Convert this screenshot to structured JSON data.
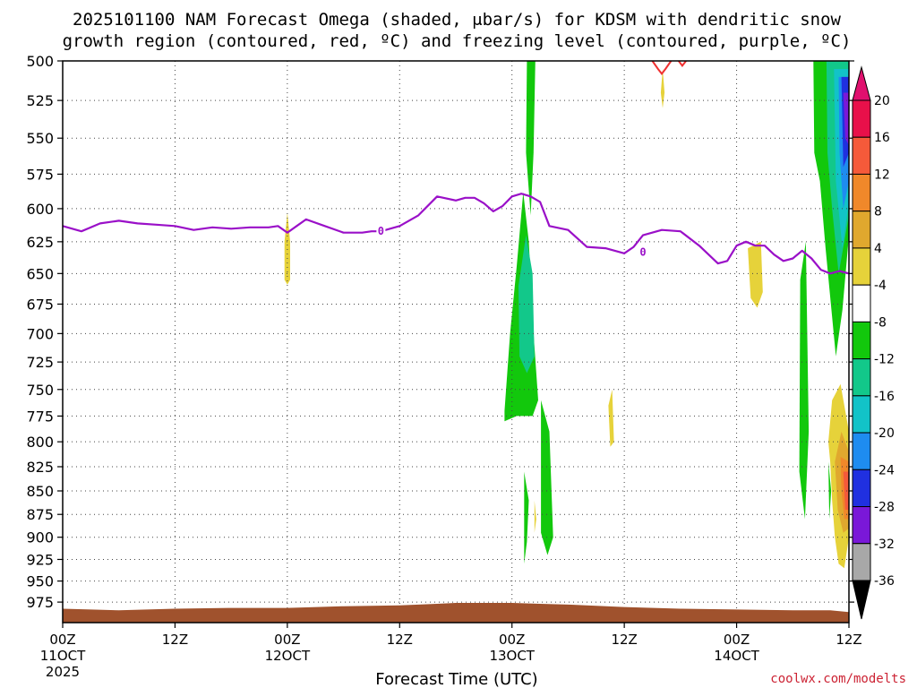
{
  "chart_data": {
    "type": "contour",
    "title_line1": "2025101100 NAM Forecast Omega (shaded, μbar/s) for KDSM with dendritic snow",
    "title_line2": "growth region (contoured, red, ºC) and freezing level (contoured, purple, ºC)",
    "xlabel": "Forecast Time (UTC)",
    "credit": "coolwx.com/modelts",
    "x_hours_range": [
      0,
      84
    ],
    "y_range_hpa": [
      500,
      1000
    ],
    "y_ticks": [
      500,
      525,
      550,
      575,
      600,
      625,
      650,
      675,
      700,
      725,
      750,
      775,
      800,
      825,
      850,
      875,
      900,
      925,
      950,
      975
    ],
    "x_ticks": [
      {
        "h": 0,
        "line1": "00Z",
        "line2": "11OCT",
        "line3": "2025"
      },
      {
        "h": 12,
        "line1": "12Z",
        "line2": "",
        "line3": ""
      },
      {
        "h": 24,
        "line1": "00Z",
        "line2": "12OCT",
        "line3": ""
      },
      {
        "h": 36,
        "line1": "12Z",
        "line2": "",
        "line3": ""
      },
      {
        "h": 48,
        "line1": "00Z",
        "line2": "13OCT",
        "line3": ""
      },
      {
        "h": 60,
        "line1": "12Z",
        "line2": "",
        "line3": ""
      },
      {
        "h": 72,
        "line1": "00Z",
        "line2": "14OCT",
        "line3": ""
      },
      {
        "h": 84,
        "line1": "12Z",
        "line2": "",
        "line3": ""
      }
    ],
    "colorbar": {
      "labels": [
        "20",
        "16",
        "12",
        "8",
        "4",
        "-4",
        "-8",
        "-12",
        "-16",
        "-20",
        "-24",
        "-28",
        "-32",
        "-36"
      ],
      "colors": [
        "#e8104a",
        "#f55a3a",
        "#f0882a",
        "#e0a82e",
        "#e6d23a",
        "#ffffff",
        "#12c80c",
        "#12c88a",
        "#12c3c8",
        "#1e8cf0",
        "#2030e0",
        "#7a18d8",
        "#9a0cc8",
        "#a8a8a8"
      ],
      "top_triangle_color": "#e0106e",
      "bottom_triangle_color": "#000000"
    },
    "freezing_level": {
      "label": "0",
      "color": "#9a10c8",
      "hours": [
        0,
        2,
        4,
        6,
        8,
        10,
        12,
        14,
        16,
        18,
        20,
        22,
        23,
        24,
        25,
        26,
        28,
        30,
        32,
        33,
        34,
        36,
        38,
        40,
        42,
        43,
        44,
        45,
        46,
        47,
        48,
        49,
        50,
        51,
        52,
        54,
        56,
        58,
        60,
        61,
        62,
        64,
        66,
        68,
        70,
        71,
        72,
        73,
        74,
        75,
        76,
        77,
        78,
        79,
        80,
        81,
        82,
        83,
        84
      ],
      "pressure": [
        613,
        617,
        611,
        609,
        611,
        612,
        613,
        616,
        614,
        615,
        614,
        614,
        613,
        618,
        613,
        608,
        613,
        618,
        618,
        617,
        617,
        613,
        605,
        591,
        594,
        592,
        592,
        596,
        602,
        598,
        591,
        589,
        591,
        595,
        613,
        616,
        629,
        630,
        634,
        629,
        620,
        616,
        617,
        628,
        642,
        640,
        628,
        625,
        628,
        628,
        635,
        640,
        638,
        632,
        638,
        647,
        650,
        648,
        650
      ]
    },
    "omega_regions": [
      {
        "color": "#e6d23a",
        "points": [
          [
            24.0,
            603
          ],
          [
            24.3,
            625
          ],
          [
            24.3,
            655
          ],
          [
            24.0,
            659
          ],
          [
            23.7,
            655
          ],
          [
            23.7,
            625
          ]
        ]
      },
      {
        "color": "#12c80c",
        "points": [
          [
            47.2,
            770
          ],
          [
            47.8,
            700
          ],
          [
            48.5,
            645
          ],
          [
            49.2,
            588
          ],
          [
            49.8,
            625
          ],
          [
            50.3,
            700
          ],
          [
            50.8,
            760
          ],
          [
            50.2,
            775
          ],
          [
            48.5,
            775
          ],
          [
            47.2,
            780
          ]
        ]
      },
      {
        "color": "#12c88a",
        "points": [
          [
            48.7,
            660
          ],
          [
            49.5,
            620
          ],
          [
            50.2,
            650
          ],
          [
            50.4,
            720
          ],
          [
            49.6,
            735
          ],
          [
            48.8,
            720
          ]
        ]
      },
      {
        "color": "#12c80c",
        "points": [
          [
            49.6,
            500
          ],
          [
            50.5,
            500
          ],
          [
            50.3,
            560
          ],
          [
            50.0,
            605
          ],
          [
            49.5,
            560
          ]
        ]
      },
      {
        "color": "#12c80c",
        "points": [
          [
            51.1,
            760
          ],
          [
            52.0,
            790
          ],
          [
            52.4,
            900
          ],
          [
            51.8,
            920
          ],
          [
            51.1,
            895
          ]
        ]
      },
      {
        "color": "#12c80c",
        "points": [
          [
            49.3,
            830
          ],
          [
            49.8,
            860
          ],
          [
            49.6,
            905
          ],
          [
            49.3,
            930
          ]
        ]
      },
      {
        "color": "#e6d23a",
        "points": [
          [
            50.4,
            860
          ],
          [
            50.6,
            880
          ],
          [
            50.4,
            895
          ]
        ]
      },
      {
        "color": "#e6d23a",
        "points": [
          [
            63.9,
            520
          ],
          [
            64.1,
            505
          ],
          [
            64.3,
            520
          ],
          [
            64.1,
            530
          ]
        ]
      },
      {
        "color": "#e6d23a",
        "points": [
          [
            58.3,
            765
          ],
          [
            58.7,
            750
          ],
          [
            58.9,
            800
          ],
          [
            58.5,
            805
          ]
        ]
      },
      {
        "color": "#e6d23a",
        "points": [
          [
            73.2,
            630
          ],
          [
            74.6,
            625
          ],
          [
            74.8,
            665
          ],
          [
            74.2,
            678
          ],
          [
            73.5,
            670
          ]
        ]
      },
      {
        "color": "#12c80c",
        "points": [
          [
            78.8,
            655
          ],
          [
            79.4,
            625
          ],
          [
            79.7,
            790
          ],
          [
            79.3,
            880
          ],
          [
            78.7,
            830
          ]
        ]
      },
      {
        "color": "#12c80c",
        "points": [
          [
            80.2,
            500
          ],
          [
            84.0,
            500
          ],
          [
            84.0,
            620
          ],
          [
            83.3,
            680
          ],
          [
            82.6,
            720
          ],
          [
            81.5,
            630
          ],
          [
            80.9,
            580
          ],
          [
            80.3,
            560
          ]
        ]
      },
      {
        "color": "#12c80c",
        "points": [
          [
            81.8,
            820
          ],
          [
            82.1,
            850
          ],
          [
            81.9,
            880
          ]
        ]
      },
      {
        "color": "#12c88a",
        "points": [
          [
            81.6,
            500
          ],
          [
            84.0,
            500
          ],
          [
            84.0,
            605
          ],
          [
            82.9,
            650
          ],
          [
            82.2,
            600
          ],
          [
            81.7,
            560
          ]
        ]
      },
      {
        "color": "#12c3c8",
        "points": [
          [
            82.4,
            505
          ],
          [
            84.0,
            505
          ],
          [
            84.0,
            595
          ],
          [
            83.3,
            630
          ],
          [
            82.6,
            580
          ]
        ]
      },
      {
        "color": "#1e8cf0",
        "points": [
          [
            82.9,
            510
          ],
          [
            84.0,
            510
          ],
          [
            84.0,
            580
          ],
          [
            83.4,
            600
          ],
          [
            83.0,
            560
          ]
        ]
      },
      {
        "color": "#2030e0",
        "points": [
          [
            83.2,
            510
          ],
          [
            84.0,
            510
          ],
          [
            84.0,
            560
          ],
          [
            83.4,
            570
          ]
        ]
      },
      {
        "color": "#7a18d8",
        "points": [
          [
            83.4,
            520
          ],
          [
            84.0,
            520
          ],
          [
            84.0,
            555
          ],
          [
            83.6,
            550
          ]
        ]
      },
      {
        "color": "#e6d23a",
        "points": [
          [
            81.8,
            800
          ],
          [
            82.2,
            760
          ],
          [
            83.1,
            745
          ],
          [
            84.0,
            790
          ],
          [
            84.0,
            900
          ],
          [
            83.5,
            935
          ],
          [
            82.9,
            930
          ],
          [
            82.5,
            900
          ],
          [
            82.2,
            860
          ],
          [
            82.0,
            820
          ]
        ]
      },
      {
        "color": "#e0a82e",
        "points": [
          [
            82.5,
            820
          ],
          [
            83.2,
            790
          ],
          [
            84.0,
            810
          ],
          [
            84.0,
            890
          ],
          [
            83.4,
            895
          ],
          [
            82.8,
            870
          ]
        ]
      },
      {
        "color": "#f0882a",
        "points": [
          [
            83.1,
            815
          ],
          [
            84.0,
            820
          ],
          [
            84.0,
            880
          ],
          [
            83.5,
            880
          ],
          [
            83.2,
            850
          ]
        ]
      },
      {
        "color": "#f55a3a",
        "points": [
          [
            83.4,
            830
          ],
          [
            84.0,
            830
          ],
          [
            84.0,
            870
          ],
          [
            83.6,
            870
          ]
        ]
      }
    ],
    "dgz_contours": [
      {
        "color": "#f03030",
        "points": [
          [
            63.0,
            500
          ],
          [
            63.6,
            505
          ],
          [
            64.0,
            508
          ],
          [
            64.4,
            505
          ],
          [
            65.0,
            500
          ]
        ]
      },
      {
        "color": "#f03030",
        "points": [
          [
            65.8,
            500
          ],
          [
            66.2,
            503
          ],
          [
            66.6,
            500
          ]
        ]
      }
    ],
    "terrain": {
      "color": "#a0522d",
      "hours": [
        0,
        3,
        6,
        9,
        12,
        18,
        24,
        30,
        36,
        40,
        42,
        44,
        48,
        51,
        54,
        60,
        66,
        72,
        78,
        82,
        84
      ],
      "pressure": [
        983,
        984,
        985,
        984,
        983,
        982,
        982,
        980,
        979,
        977,
        976,
        976,
        976,
        977,
        978,
        981,
        983,
        984,
        985,
        985,
        987
      ]
    }
  }
}
